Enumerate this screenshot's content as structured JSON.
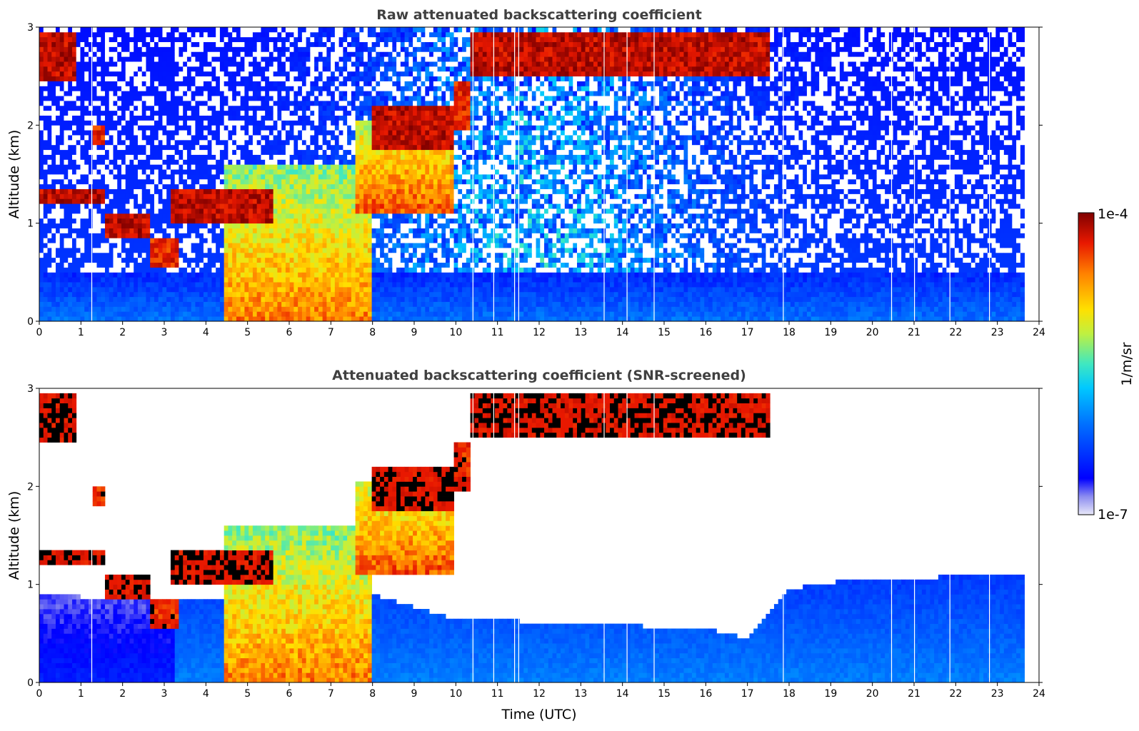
{
  "chart_data": [
    {
      "type": "heatmap",
      "title": "Raw attenuated backscattering coefficient",
      "xlabel": "",
      "ylabel": "Altitude (km)",
      "xlim": [
        0,
        24
      ],
      "ylim": [
        0,
        3
      ],
      "x_ticks": [
        0,
        1,
        2,
        3,
        4,
        5,
        6,
        7,
        8,
        9,
        10,
        11,
        12,
        13,
        14,
        15,
        16,
        17,
        18,
        19,
        20,
        21,
        22,
        23,
        24
      ],
      "y_ticks": [
        0,
        1,
        2,
        3
      ],
      "data_end_hour": 23.65,
      "gaps_hours": [
        1.25,
        10.4,
        10.9,
        11.4,
        11.5,
        13.55,
        14.1,
        14.75,
        17.85,
        20.45,
        21.0,
        21.85,
        22.8
      ],
      "features": [
        {
          "kind": "cloud",
          "hour_start": 0.0,
          "hour_end": 0.85,
          "alt_bottom": 2.45,
          "alt_top": 2.95,
          "level": 1.0
        },
        {
          "kind": "cloud",
          "hour_start": 1.3,
          "hour_end": 1.55,
          "alt_bottom": 1.8,
          "alt_top": 2.0,
          "level": 0.95
        },
        {
          "kind": "cloud",
          "hour_start": 0.0,
          "hour_end": 1.6,
          "alt_bottom": 1.22,
          "alt_top": 1.35,
          "level": 1.0
        },
        {
          "kind": "cloud",
          "hour_start": 1.6,
          "hour_end": 2.65,
          "alt_bottom": 0.85,
          "alt_top": 1.1,
          "level": 1.0
        },
        {
          "kind": "cloud",
          "hour_start": 2.65,
          "hour_end": 3.35,
          "alt_bottom": 0.55,
          "alt_top": 0.85,
          "level": 0.95
        },
        {
          "kind": "cloud",
          "hour_start": 3.2,
          "hour_end": 5.6,
          "alt_bottom": 1.0,
          "alt_top": 1.35,
          "level": 1.0
        },
        {
          "kind": "cloud",
          "hour_start": 8.0,
          "hour_end": 10.0,
          "alt_bottom": 1.75,
          "alt_top": 2.2,
          "level": 1.0
        },
        {
          "kind": "cloud",
          "hour_start": 10.0,
          "hour_end": 10.35,
          "alt_bottom": 1.95,
          "alt_top": 2.45,
          "level": 0.95
        },
        {
          "kind": "cloud",
          "hour_start": 10.35,
          "hour_end": 17.5,
          "alt_bottom": 2.5,
          "alt_top": 2.95,
          "level": 1.0
        },
        {
          "kind": "aerosol",
          "hour_start": 4.4,
          "hour_end": 8.0,
          "alt_bottom": 0.0,
          "alt_top": 1.6,
          "level": 0.8
        },
        {
          "kind": "aerosol",
          "hour_start": 7.6,
          "hour_end": 10.0,
          "alt_bottom": 1.1,
          "alt_top": 2.05,
          "level": 0.85
        },
        {
          "kind": "boundary-layer",
          "hour_start": 0.0,
          "hour_end": 23.65,
          "alt_bottom": 0.0,
          "alt_top": 0.5,
          "level": 0.3
        }
      ]
    },
    {
      "type": "heatmap",
      "title": "Attenuated backscattering coefficient (SNR-screened)",
      "xlabel": "Time (UTC)",
      "ylabel": "Altitude (km)",
      "xlim": [
        0,
        24
      ],
      "ylim": [
        0,
        3
      ],
      "x_ticks": [
        0,
        1,
        2,
        3,
        4,
        5,
        6,
        7,
        8,
        9,
        10,
        11,
        12,
        13,
        14,
        15,
        16,
        17,
        18,
        19,
        20,
        21,
        22,
        23,
        24
      ],
      "y_ticks": [
        0,
        1,
        2,
        3
      ],
      "screened": true,
      "saturated_color": "#000000",
      "boundary_layer_top_km": [
        {
          "hour": 0,
          "alt": 0.9
        },
        {
          "hour": 2,
          "alt": 0.85
        },
        {
          "hour": 8,
          "alt": 0.9
        },
        {
          "hour": 10,
          "alt": 0.65
        },
        {
          "hour": 13,
          "alt": 0.6
        },
        {
          "hour": 16,
          "alt": 0.55
        },
        {
          "hour": 17,
          "alt": 0.45
        },
        {
          "hour": 18,
          "alt": 0.95
        },
        {
          "hour": 19.5,
          "alt": 1.05
        },
        {
          "hour": 23.65,
          "alt": 1.1
        }
      ]
    }
  ],
  "colorbar": {
    "label": "1/m/sr",
    "max_label": "1e-4",
    "min_label": "1e-7"
  }
}
